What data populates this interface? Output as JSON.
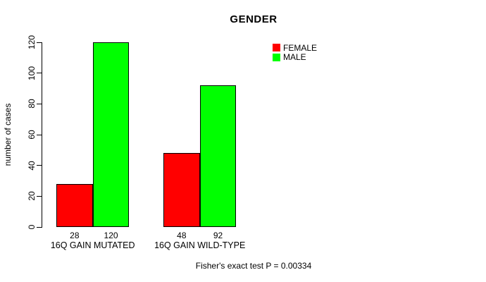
{
  "chart_data": {
    "type": "bar",
    "title": "GENDER",
    "ylabel": "number of cases",
    "xlabel": "",
    "categories": [
      "16Q GAIN MUTATED",
      "16Q GAIN WILD-TYPE"
    ],
    "series": [
      {
        "name": "FEMALE",
        "color": "#FF0000",
        "values": [
          28,
          48
        ]
      },
      {
        "name": "MALE",
        "color": "#00FF00",
        "values": [
          120,
          92
        ]
      }
    ],
    "ylim": [
      0,
      120
    ],
    "yticks": [
      0,
      20,
      40,
      60,
      80,
      100,
      120
    ],
    "bar_value_labels": [
      [
        "28",
        "120"
      ],
      [
        "48",
        "92"
      ]
    ],
    "grid": false,
    "legend_position": "top-right",
    "annotation": "Fisher's exact test P = 0.00334"
  }
}
